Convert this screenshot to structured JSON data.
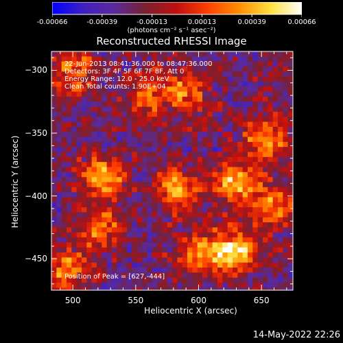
{
  "colorbar": {
    "tick_labels": [
      "-0.00066",
      "-0.00039",
      "-0.00013",
      "0.00013",
      "0.00039",
      "0.00066"
    ],
    "units": "(photons cm⁻² s⁻¹ asec⁻²)",
    "colormap": [
      "#0000ff",
      "#4020c0",
      "#5a2b9a",
      "#7a2030",
      "#c01010",
      "#ff4000",
      "#ff9000",
      "#ffe040",
      "#ffffff"
    ]
  },
  "chart_data": {
    "type": "heatmap",
    "title": "Reconstructed RHESSI Image",
    "xlabel": "Heliocentric X (arcsec)",
    "ylabel": "Heliocentric Y (arcsec)",
    "xlim": [
      483,
      675
    ],
    "ylim": [
      -475,
      -285
    ],
    "x_ticks": [
      500,
      550,
      600,
      650
    ],
    "y_ticks": [
      -300,
      -350,
      -400,
      -450
    ],
    "value_range": [
      -0.00066,
      0.00066
    ],
    "peak_position": [
      627,
      -444
    ],
    "bright_regions": [
      {
        "x": 525,
        "y": -385,
        "level": 0.8
      },
      {
        "x": 520,
        "y": -425,
        "level": 0.7
      },
      {
        "x": 585,
        "y": -395,
        "level": 0.75
      },
      {
        "x": 630,
        "y": -390,
        "level": 0.95
      },
      {
        "x": 655,
        "y": -355,
        "level": 0.75
      },
      {
        "x": 600,
        "y": -445,
        "level": 0.7
      },
      {
        "x": 627,
        "y": -444,
        "level": 1.0
      },
      {
        "x": 560,
        "y": -320,
        "level": 0.55
      },
      {
        "x": 500,
        "y": -300,
        "level": 0.6
      },
      {
        "x": 590,
        "y": -315,
        "level": 0.6
      },
      {
        "x": 660,
        "y": -410,
        "level": 0.65
      },
      {
        "x": 495,
        "y": -460,
        "level": 0.7
      }
    ],
    "annotations": [
      "22-Jun-2013 08:41:36.000 to 08:47:36.000",
      "Detectors: 3F 4F 5F 6F 7F 8F, Att 0",
      "Energy Range: 12.0 - 25.0 keV",
      "Clean     Total counts: 1.90E+04",
      "Position of Peak = [627,-444]"
    ]
  },
  "footer": {
    "date": "14-May-2022 22:26"
  }
}
